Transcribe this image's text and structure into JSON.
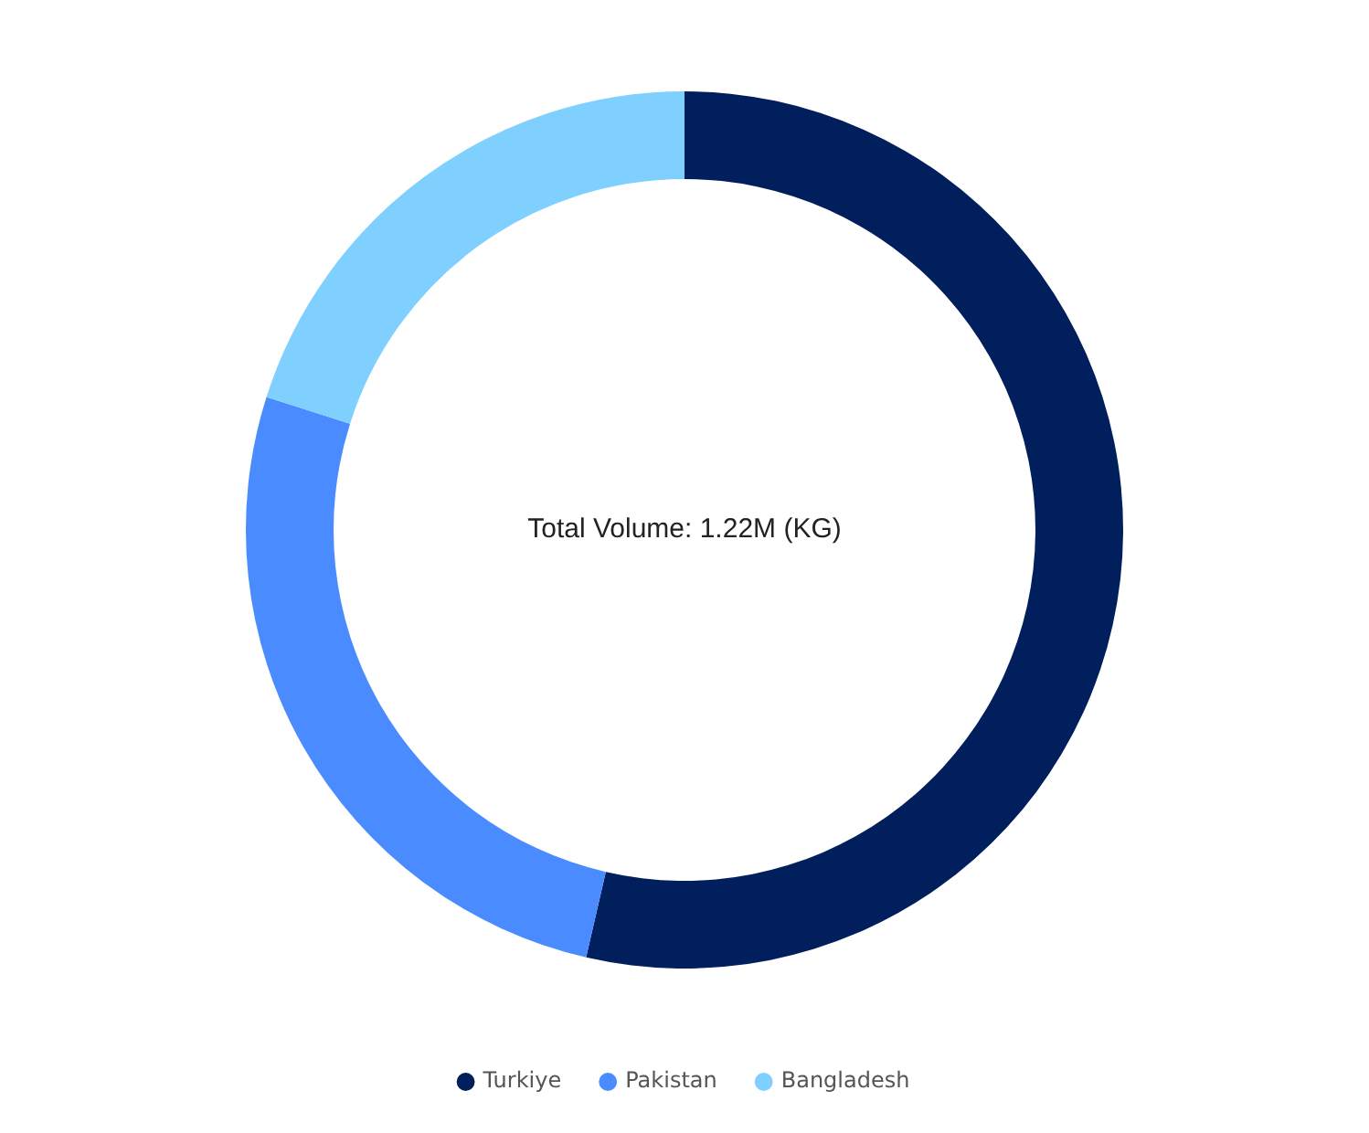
{
  "chart_data": {
    "type": "donut",
    "categories": [
      "Turkiye",
      "Pakistan",
      "Bangladesh"
    ],
    "values": [
      53.6,
      26.3,
      20.1
    ],
    "colors": [
      "#001f5c",
      "#4a8cff",
      "#80d0ff"
    ],
    "legend": "bottom",
    "annotations": [
      "Total Volume: 1.22M (KG)"
    ]
  }
}
